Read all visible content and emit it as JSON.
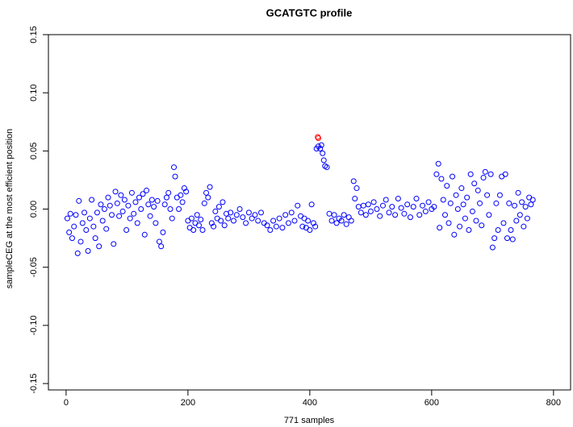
{
  "chart_data": {
    "type": "scatter",
    "title": "GCATGTC profile",
    "x_label": "771 samples",
    "y_label": "sampleCEG at the most efficient position",
    "xlim": [
      -29,
      828
    ],
    "ylim": [
      -0.1555,
      0.15
    ],
    "xticks": [
      0,
      200,
      400,
      600,
      800
    ],
    "yticks": [
      -0.15,
      {
        "value": -0.1,
        "label": "-0.10"
      },
      -0.05,
      {
        "value": 0,
        "label": "0.00"
      },
      0.05,
      {
        "value": 0.1,
        "label": "0.10"
      },
      0.15
    ],
    "series": [
      {
        "color": "#0000ff",
        "x": [
          2,
          5,
          7,
          10,
          13,
          16,
          19,
          21,
          24,
          27,
          30,
          33,
          36,
          39,
          42,
          45,
          48,
          51,
          54,
          57,
          60,
          63,
          66,
          69,
          72,
          75,
          78,
          81,
          84,
          87,
          90,
          93,
          96,
          99,
          102,
          105,
          108,
          111,
          114,
          117,
          120,
          123,
          126,
          129,
          132,
          135,
          138,
          141,
          144,
          147,
          150,
          153,
          156,
          159,
          162,
          165,
          168,
          171,
          174,
          177,
          179,
          182,
          185,
          188,
          191,
          194,
          197,
          200,
          203,
          206,
          209,
          212,
          215,
          218,
          221,
          224,
          227,
          230,
          233,
          236,
          239,
          242,
          245,
          248,
          251,
          254,
          257,
          260,
          263,
          266,
          270,
          275,
          280,
          285,
          290,
          295,
          300,
          305,
          310,
          315,
          320,
          325,
          330,
          335,
          340,
          345,
          350,
          355,
          360,
          365,
          370,
          375,
          380,
          385,
          388,
          391,
          394,
          397,
          400,
          403,
          406,
          409,
          411,
          414,
          417,
          419,
          421,
          423,
          425,
          428,
          432,
          436,
          440,
          444,
          448,
          452,
          456,
          460,
          464,
          468,
          472,
          474,
          477,
          480,
          484,
          488,
          492,
          496,
          500,
          505,
          510,
          515,
          520,
          525,
          530,
          535,
          540,
          545,
          550,
          555,
          560,
          565,
          570,
          575,
          580,
          585,
          590,
          595,
          600,
          604,
          608,
          611,
          613,
          616,
          619,
          622,
          625,
          628,
          631,
          634,
          637,
          640,
          643,
          646,
          649,
          652,
          655,
          658,
          661,
          664,
          667,
          670,
          673,
          676,
          679,
          682,
          685,
          688,
          691,
          694,
          697,
          700,
          703,
          706,
          709,
          712,
          715,
          718,
          721,
          724,
          727,
          730,
          733,
          736,
          739,
          742,
          745,
          748,
          751,
          754,
          757,
          760,
          763,
          766
        ],
        "values": [
          -0.008,
          -0.02,
          -0.004,
          -0.025,
          -0.015,
          -0.005,
          -0.038,
          0.007,
          -0.028,
          -0.012,
          -0.003,
          -0.018,
          -0.036,
          -0.008,
          0.008,
          -0.015,
          -0.025,
          -0.003,
          -0.032,
          0.004,
          -0.01,
          0.0,
          -0.017,
          0.01,
          0.003,
          -0.005,
          -0.03,
          0.015,
          0.005,
          -0.006,
          0.012,
          -0.002,
          0.008,
          -0.018,
          0.003,
          -0.008,
          0.014,
          -0.004,
          0.006,
          -0.012,
          0.01,
          0.0,
          0.013,
          -0.022,
          0.016,
          0.004,
          -0.006,
          0.008,
          0.002,
          -0.012,
          0.007,
          -0.028,
          -0.032,
          -0.02,
          0.004,
          0.01,
          0.014,
          0.0,
          -0.008,
          0.036,
          0.028,
          0.01,
          0.0,
          0.012,
          0.006,
          0.018,
          0.015,
          -0.01,
          -0.016,
          -0.008,
          -0.018,
          -0.012,
          -0.005,
          -0.014,
          -0.009,
          -0.018,
          0.005,
          0.014,
          0.01,
          0.019,
          -0.012,
          -0.015,
          -0.002,
          -0.008,
          0.002,
          -0.01,
          0.006,
          -0.014,
          -0.004,
          -0.008,
          -0.003,
          -0.01,
          -0.005,
          0.0,
          -0.007,
          -0.012,
          -0.003,
          -0.008,
          -0.005,
          -0.01,
          -0.003,
          -0.012,
          -0.014,
          -0.018,
          -0.01,
          -0.015,
          -0.008,
          -0.016,
          -0.005,
          -0.012,
          -0.003,
          -0.01,
          0.003,
          -0.006,
          -0.015,
          -0.008,
          -0.016,
          -0.01,
          -0.018,
          0.004,
          -0.012,
          -0.015,
          0.052,
          0.054,
          0.052,
          0.055,
          0.048,
          0.042,
          0.037,
          0.036,
          -0.004,
          -0.01,
          -0.005,
          -0.012,
          -0.008,
          -0.01,
          -0.005,
          -0.013,
          -0.007,
          -0.01,
          0.024,
          0.009,
          0.018,
          0.002,
          -0.003,
          0.003,
          -0.005,
          0.004,
          -0.002,
          0.006,
          0.0,
          -0.006,
          0.003,
          0.008,
          -0.003,
          0.002,
          -0.005,
          0.009,
          0.001,
          -0.004,
          0.004,
          -0.007,
          0.002,
          0.009,
          -0.005,
          0.003,
          -0.002,
          0.006,
          0.0,
          0.002,
          0.03,
          0.039,
          -0.016,
          0.026,
          0.008,
          -0.005,
          0.02,
          -0.012,
          0.005,
          0.028,
          -0.022,
          0.012,
          0.0,
          -0.015,
          0.018,
          0.004,
          -0.008,
          0.01,
          -0.018,
          0.03,
          -0.002,
          0.022,
          -0.01,
          0.016,
          0.005,
          -0.014,
          0.027,
          0.032,
          0.012,
          -0.005,
          0.03,
          -0.033,
          -0.025,
          0.005,
          -0.018,
          0.012,
          0.028,
          -0.012,
          0.03,
          -0.025,
          0.005,
          -0.018,
          -0.026,
          0.003,
          -0.01,
          0.014,
          -0.005,
          0.006,
          -0.015,
          0.002,
          -0.008,
          0.01,
          0.004,
          0.008
        ]
      },
      {
        "color": "#ff0000",
        "x": [
          413,
          414
        ],
        "values": [
          0.062,
          0.061
        ]
      }
    ]
  }
}
